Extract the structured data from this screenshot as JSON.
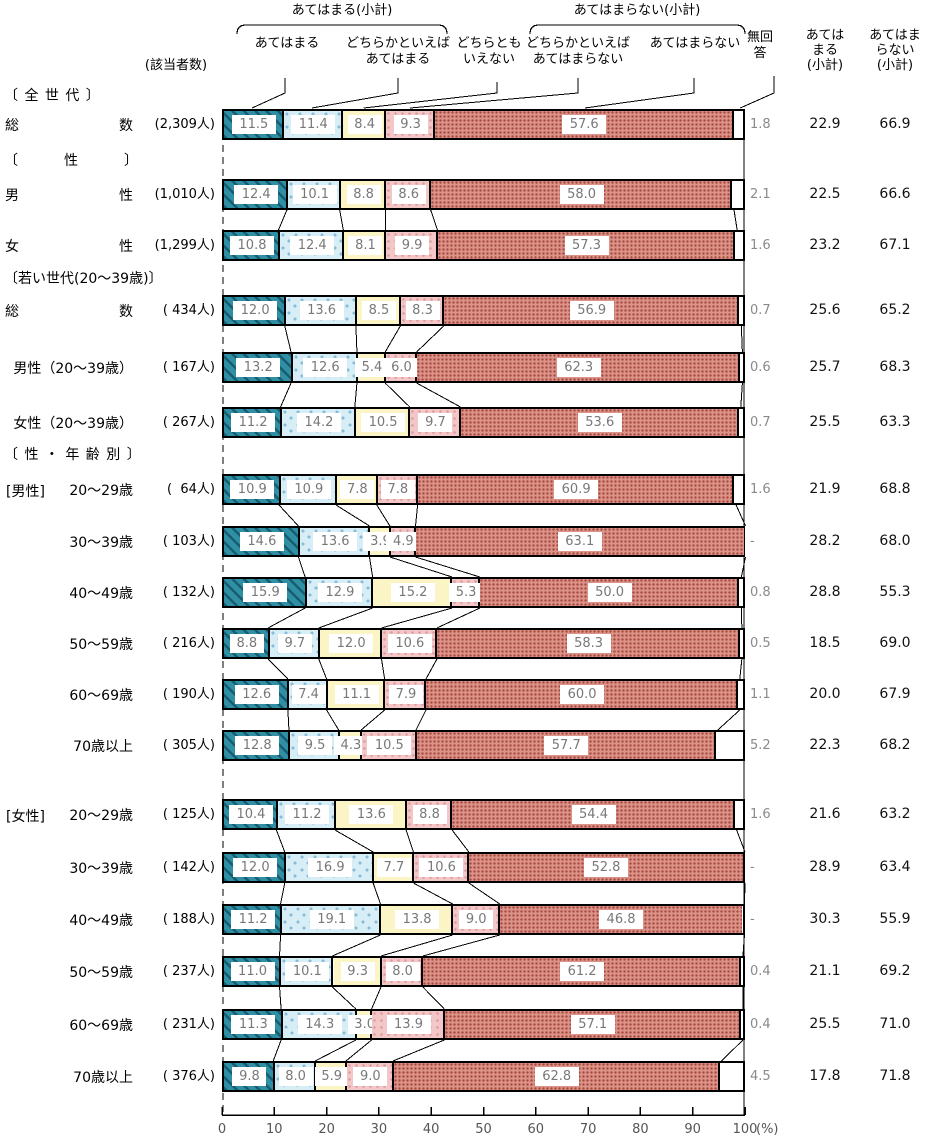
{
  "headers": {
    "applies_subtotal": "あてはまる(小計)",
    "not_applies_subtotal": "あてはまらない(小計)",
    "respondents": "(該当者数)",
    "col_applies": "あてはまる",
    "col_rather_applies": [
      "どちらかといえば",
      "あてはまる"
    ],
    "col_neither": [
      "どちらとも",
      "いえない"
    ],
    "col_rather_not": [
      "どちらかといえば",
      "あてはまらない"
    ],
    "col_not": "あてはまらない",
    "col_no_answer": [
      "無回",
      "答"
    ],
    "col_sum_applies": [
      "あては",
      "まる",
      "(小計)"
    ],
    "col_sum_not": [
      "あてはま",
      "らない",
      "(小計)"
    ]
  },
  "sections": {
    "all_generations": "〔 全 世 代 〕",
    "gender": "〔　　　性　　　〕",
    "young": "〔若い世代(20～39歳)〕",
    "gender_age": "〔 性 ・ 年 齢 別 〕",
    "male": "[男性]",
    "female": "[女性]"
  },
  "chart_data": {
    "type": "bar",
    "orientation": "horizontal-stacked",
    "xlim": [
      0,
      100
    ],
    "x_ticks": [
      "0",
      "10",
      "20",
      "30",
      "40",
      "50",
      "60",
      "70",
      "80",
      "90",
      "100"
    ],
    "x_unit": "(%)",
    "legend": [
      "あてはまる",
      "どちらかといえばあてはまる",
      "どちらともいえない",
      "どちらかといえばあてはまらない",
      "あてはまらない",
      "無回答"
    ],
    "colors": {
      "applies": "#2f8fa5",
      "applies_stripe": "#175d6f",
      "rather_applies": "#d8eef7",
      "rather_applies_dot": "#86bcd6",
      "neither": "#fbf5c6",
      "rather_not": "#f3c7c7",
      "rather_not_dot": "#dd9a9a",
      "not_applies": "#db9289",
      "not_applies_dot": "#a84b3e",
      "no_answer": "#ffffff"
    },
    "rows": [
      {
        "label_parts": [
          "総",
          "数"
        ],
        "count": "(2,309人)",
        "values": [
          11.5,
          11.4,
          8.4,
          9.3,
          57.6
        ],
        "no_answer": "1.8",
        "sum_applies": "22.9",
        "sum_not": "66.9"
      },
      {
        "label_parts": [
          "男",
          "性"
        ],
        "count": "(1,010人)",
        "values": [
          12.4,
          10.1,
          8.8,
          8.6,
          58.0
        ],
        "no_answer": "2.1",
        "sum_applies": "22.5",
        "sum_not": "66.6"
      },
      {
        "label_parts": [
          "女",
          "性"
        ],
        "count": "(1,299人)",
        "values": [
          10.8,
          12.4,
          8.1,
          9.9,
          57.3
        ],
        "no_answer": "1.6",
        "sum_applies": "23.2",
        "sum_not": "67.1"
      },
      {
        "label_parts": [
          "総",
          "数"
        ],
        "count": "( 434人)",
        "values": [
          12.0,
          13.6,
          8.5,
          8.3,
          56.9
        ],
        "no_answer": "0.7",
        "sum_applies": "25.6",
        "sum_not": "65.2"
      },
      {
        "label_parts": [
          "男性（20～39歳）"
        ],
        "count": "( 167人)",
        "values": [
          13.2,
          12.6,
          5.4,
          6.0,
          62.3
        ],
        "no_answer": "0.6",
        "sum_applies": "25.7",
        "sum_not": "68.3"
      },
      {
        "label_parts": [
          "女性（20～39歳）"
        ],
        "count": "( 267人)",
        "values": [
          11.2,
          14.2,
          10.5,
          9.7,
          53.6
        ],
        "no_answer": "0.7",
        "sum_applies": "25.5",
        "sum_not": "63.3"
      },
      {
        "label_parts": [
          "20～29歳"
        ],
        "count": "(  64人)",
        "values": [
          10.9,
          10.9,
          7.8,
          7.8,
          60.9
        ],
        "no_answer": "1.6",
        "sum_applies": "21.9",
        "sum_not": "68.8"
      },
      {
        "label_parts": [
          "30～39歳"
        ],
        "count": "( 103人)",
        "values": [
          14.6,
          13.6,
          3.9,
          4.9,
          63.1
        ],
        "no_answer": "-",
        "sum_applies": "28.2",
        "sum_not": "68.0"
      },
      {
        "label_parts": [
          "40～49歳"
        ],
        "count": "( 132人)",
        "values": [
          15.9,
          12.9,
          15.2,
          5.3,
          50.0
        ],
        "no_answer": "0.8",
        "sum_applies": "28.8",
        "sum_not": "55.3"
      },
      {
        "label_parts": [
          "50～59歳"
        ],
        "count": "( 216人)",
        "values": [
          8.8,
          9.7,
          12.0,
          10.6,
          58.3
        ],
        "no_answer": "0.5",
        "sum_applies": "18.5",
        "sum_not": "69.0"
      },
      {
        "label_parts": [
          "60～69歳"
        ],
        "count": "( 190人)",
        "values": [
          12.6,
          7.4,
          11.1,
          7.9,
          60.0
        ],
        "no_answer": "1.1",
        "sum_applies": "20.0",
        "sum_not": "67.9"
      },
      {
        "label_parts": [
          "70歳以上"
        ],
        "count": "( 305人)",
        "values": [
          12.8,
          9.5,
          4.3,
          10.5,
          57.7
        ],
        "no_answer": "5.2",
        "sum_applies": "22.3",
        "sum_not": "68.2"
      },
      {
        "label_parts": [
          "20～29歳"
        ],
        "count": "( 125人)",
        "values": [
          10.4,
          11.2,
          13.6,
          8.8,
          54.4
        ],
        "no_answer": "1.6",
        "sum_applies": "21.6",
        "sum_not": "63.2"
      },
      {
        "label_parts": [
          "30～39歳"
        ],
        "count": "( 142人)",
        "values": [
          12.0,
          16.9,
          7.7,
          10.6,
          52.8
        ],
        "no_answer": "-",
        "sum_applies": "28.9",
        "sum_not": "63.4"
      },
      {
        "label_parts": [
          "40～49歳"
        ],
        "count": "( 188人)",
        "values": [
          11.2,
          19.1,
          13.8,
          9.0,
          46.8
        ],
        "no_answer": "-",
        "sum_applies": "30.3",
        "sum_not": "55.9"
      },
      {
        "label_parts": [
          "50～59歳"
        ],
        "count": "( 237人)",
        "values": [
          11.0,
          10.1,
          9.3,
          8.0,
          61.2
        ],
        "no_answer": "0.4",
        "sum_applies": "21.1",
        "sum_not": "69.2"
      },
      {
        "label_parts": [
          "60～69歳"
        ],
        "count": "( 231人)",
        "values": [
          11.3,
          14.3,
          3.0,
          13.9,
          57.1
        ],
        "no_answer": "0.4",
        "sum_applies": "25.5",
        "sum_not": "71.0"
      },
      {
        "label_parts": [
          "70歳以上"
        ],
        "count": "( 376人)",
        "values": [
          9.8,
          8.0,
          5.9,
          9.0,
          62.8
        ],
        "no_answer": "4.5",
        "sum_applies": "17.8",
        "sum_not": "71.8"
      }
    ]
  }
}
